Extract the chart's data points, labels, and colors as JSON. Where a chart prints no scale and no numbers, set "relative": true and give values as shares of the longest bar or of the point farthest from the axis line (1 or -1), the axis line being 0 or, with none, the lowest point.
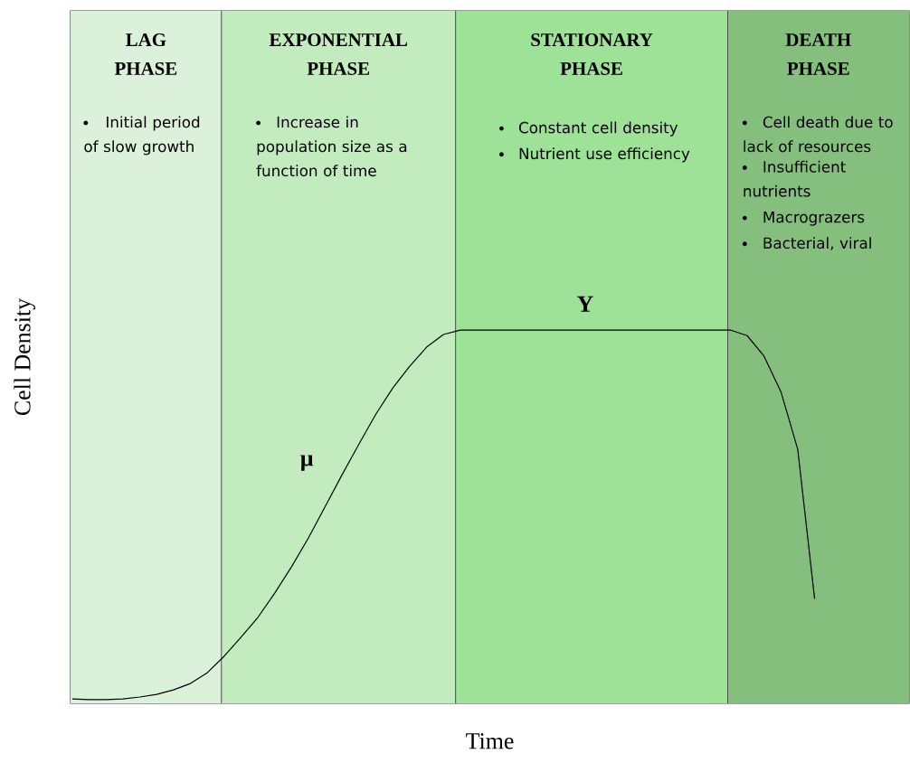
{
  "chart_data": {
    "type": "line",
    "relative": true,
    "xlabel": "Time",
    "ylabel": "Cell Density",
    "categories": [
      null,
      null,
      null,
      null,
      null,
      null,
      null,
      null,
      null,
      null,
      null,
      null,
      null,
      null,
      null,
      null,
      null,
      null,
      null,
      null,
      null,
      null,
      null,
      null,
      null,
      null,
      null,
      null,
      null,
      null,
      null,
      null,
      null,
      null,
      null,
      null,
      null,
      null,
      null,
      null,
      null,
      null,
      null,
      null,
      null
    ],
    "series": [
      {
        "color": "#000000",
        "values": [
          0.012,
          0.01,
          0.01,
          0.012,
          0.017,
          0.024,
          0.036,
          0.053,
          0.082,
          0.126,
          0.177,
          0.23,
          0.295,
          0.366,
          0.443,
          0.528,
          0.613,
          0.695,
          0.775,
          0.845,
          0.903,
          0.954,
          0.988,
          1.0,
          1.0,
          1.0,
          1.0,
          1.0,
          1.0,
          1.0,
          1.0,
          1.0,
          1.0,
          1.0,
          1.0,
          1.0,
          1.0,
          1.0,
          1.0,
          1.0,
          0.985,
          0.93,
          0.835,
          0.68,
          0.28
        ]
      }
    ],
    "annotations": [
      "μ",
      "Y",
      "LAG PHASE",
      "EXPONENTIAL PHASE",
      "STATIONARY PHASE",
      "DEATH PHASE",
      "Initial period of slow growth",
      "Increase in population size as a function of time",
      "Constant cell density",
      "Nutrient use efficiency",
      "Cell death due to lack of resources",
      "Insufficient nutrients",
      "Macrograzers",
      "Bacterial, viral"
    ]
  }
}
